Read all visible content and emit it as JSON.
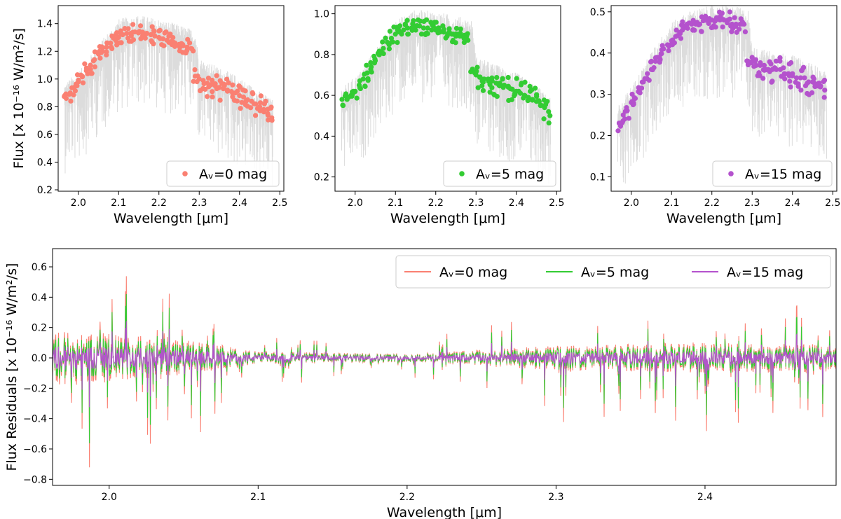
{
  "chart_data": [
    {
      "type": "scatter",
      "panel": "top-left",
      "xlabel": "Wavelength [μm]",
      "ylabel": "Flux [x 10⁻¹⁶ W/m²/s]",
      "xlim": [
        1.95,
        2.51
      ],
      "ylim": [
        0.19,
        1.53
      ],
      "xticks": [
        "2.0",
        "2.1",
        "2.2",
        "2.3",
        "2.4",
        "2.5"
      ],
      "yticks": [
        "0.2",
        "0.4",
        "0.6",
        "0.8",
        "1.0",
        "1.2",
        "1.4"
      ],
      "legend_position": "lower-right",
      "background_spectrum": {
        "color": "#dcdcdc",
        "x": [
          1.97,
          2.01,
          2.05,
          2.1,
          2.15,
          2.2,
          2.25,
          2.29,
          2.3,
          2.35,
          2.4,
          2.45,
          2.48
        ],
        "y": [
          0.85,
          0.95,
          1.12,
          1.3,
          1.33,
          1.3,
          1.26,
          1.22,
          1.02,
          0.95,
          0.88,
          0.78,
          0.72
        ]
      },
      "series": [
        {
          "name": "Aᵥ=0 mag",
          "color": "#fa8072",
          "x": [
            1.97,
            1.98,
            1.99,
            2.0,
            2.01,
            2.02,
            2.03,
            2.04,
            2.05,
            2.06,
            2.07,
            2.08,
            2.09,
            2.1,
            2.11,
            2.12,
            2.13,
            2.14,
            2.15,
            2.16,
            2.17,
            2.18,
            2.19,
            2.2,
            2.21,
            2.22,
            2.23,
            2.24,
            2.25,
            2.26,
            2.27,
            2.28,
            2.29,
            2.3,
            2.31,
            2.32,
            2.33,
            2.34,
            2.35,
            2.36,
            2.37,
            2.38,
            2.39,
            2.4,
            2.41,
            2.42,
            2.43,
            2.44,
            2.45,
            2.46,
            2.47,
            2.48
          ],
          "y": [
            0.86,
            0.9,
            0.94,
            0.98,
            1.02,
            1.06,
            1.1,
            1.14,
            1.18,
            1.2,
            1.23,
            1.26,
            1.29,
            1.3,
            1.32,
            1.33,
            1.33,
            1.34,
            1.34,
            1.33,
            1.33,
            1.32,
            1.31,
            1.3,
            1.29,
            1.28,
            1.27,
            1.26,
            1.25,
            1.24,
            1.23,
            1.22,
            1.02,
            1.0,
            0.99,
            0.97,
            0.96,
            0.95,
            0.94,
            0.93,
            0.92,
            0.91,
            0.9,
            0.88,
            0.87,
            0.85,
            0.84,
            0.82,
            0.8,
            0.78,
            0.75,
            0.72
          ]
        }
      ]
    },
    {
      "type": "scatter",
      "panel": "top-middle",
      "xlabel": "Wavelength [μm]",
      "ylabel": "",
      "xlim": [
        1.95,
        2.51
      ],
      "ylim": [
        0.13,
        1.04
      ],
      "xticks": [
        "2.0",
        "2.1",
        "2.2",
        "2.3",
        "2.4",
        "2.5"
      ],
      "yticks": [
        "0.2",
        "0.4",
        "0.6",
        "0.8",
        "1.0"
      ],
      "legend_position": "lower-right",
      "background_spectrum": {
        "color": "#dcdcdc",
        "x": [
          1.97,
          2.01,
          2.05,
          2.1,
          2.15,
          2.2,
          2.25,
          2.29,
          2.3,
          2.35,
          2.4,
          2.45,
          2.48
        ],
        "y": [
          0.55,
          0.62,
          0.74,
          0.88,
          0.93,
          0.92,
          0.9,
          0.88,
          0.7,
          0.66,
          0.62,
          0.56,
          0.5
        ]
      },
      "series": [
        {
          "name": "Aᵥ=5 mag",
          "color": "#33cc33",
          "x": [
            1.97,
            1.98,
            1.99,
            2.0,
            2.01,
            2.02,
            2.03,
            2.04,
            2.05,
            2.06,
            2.07,
            2.08,
            2.09,
            2.1,
            2.11,
            2.12,
            2.13,
            2.14,
            2.15,
            2.16,
            2.17,
            2.18,
            2.19,
            2.2,
            2.21,
            2.22,
            2.23,
            2.24,
            2.25,
            2.26,
            2.27,
            2.28,
            2.29,
            2.3,
            2.31,
            2.32,
            2.33,
            2.34,
            2.35,
            2.36,
            2.37,
            2.38,
            2.39,
            2.4,
            2.41,
            2.42,
            2.43,
            2.44,
            2.45,
            2.46,
            2.47,
            2.48
          ],
          "y": [
            0.55,
            0.58,
            0.6,
            0.62,
            0.65,
            0.68,
            0.71,
            0.74,
            0.77,
            0.8,
            0.83,
            0.86,
            0.88,
            0.9,
            0.91,
            0.92,
            0.93,
            0.93,
            0.94,
            0.94,
            0.93,
            0.93,
            0.92,
            0.92,
            0.91,
            0.91,
            0.9,
            0.9,
            0.89,
            0.89,
            0.88,
            0.87,
            0.72,
            0.7,
            0.69,
            0.68,
            0.68,
            0.67,
            0.66,
            0.65,
            0.65,
            0.64,
            0.63,
            0.62,
            0.61,
            0.6,
            0.59,
            0.58,
            0.57,
            0.55,
            0.54,
            0.52
          ]
        }
      ]
    },
    {
      "type": "scatter",
      "panel": "top-right",
      "xlabel": "Wavelength [μm]",
      "ylabel": "",
      "xlim": [
        1.95,
        2.51
      ],
      "ylim": [
        0.065,
        0.515
      ],
      "xticks": [
        "2.0",
        "2.1",
        "2.2",
        "2.3",
        "2.4",
        "2.5"
      ],
      "yticks": [
        "0.1",
        "0.2",
        "0.3",
        "0.4",
        "0.5"
      ],
      "legend_position": "lower-right",
      "background_spectrum": {
        "color": "#dcdcdc",
        "x": [
          1.97,
          2.01,
          2.05,
          2.1,
          2.15,
          2.2,
          2.25,
          2.29,
          2.3,
          2.35,
          2.4,
          2.45,
          2.48
        ],
        "y": [
          0.23,
          0.29,
          0.36,
          0.43,
          0.46,
          0.47,
          0.47,
          0.46,
          0.37,
          0.36,
          0.35,
          0.33,
          0.31
        ]
      },
      "series": [
        {
          "name": "Aᵥ=15 mag",
          "color": "#b452cd",
          "x": [
            1.97,
            1.98,
            1.99,
            2.0,
            2.01,
            2.02,
            2.03,
            2.04,
            2.05,
            2.06,
            2.07,
            2.08,
            2.09,
            2.1,
            2.11,
            2.12,
            2.13,
            2.14,
            2.15,
            2.16,
            2.17,
            2.18,
            2.19,
            2.2,
            2.21,
            2.22,
            2.23,
            2.24,
            2.25,
            2.26,
            2.27,
            2.28,
            2.29,
            2.3,
            2.31,
            2.32,
            2.33,
            2.34,
            2.35,
            2.36,
            2.37,
            2.38,
            2.39,
            2.4,
            2.41,
            2.42,
            2.43,
            2.44,
            2.45,
            2.46,
            2.47,
            2.48
          ],
          "y": [
            0.23,
            0.25,
            0.26,
            0.28,
            0.29,
            0.31,
            0.33,
            0.35,
            0.36,
            0.38,
            0.39,
            0.41,
            0.42,
            0.43,
            0.44,
            0.45,
            0.46,
            0.46,
            0.47,
            0.47,
            0.47,
            0.48,
            0.48,
            0.48,
            0.48,
            0.48,
            0.48,
            0.48,
            0.47,
            0.47,
            0.47,
            0.47,
            0.38,
            0.38,
            0.37,
            0.37,
            0.37,
            0.36,
            0.36,
            0.36,
            0.36,
            0.35,
            0.35,
            0.35,
            0.34,
            0.34,
            0.34,
            0.33,
            0.33,
            0.32,
            0.32,
            0.31
          ]
        }
      ]
    },
    {
      "type": "line",
      "panel": "bottom",
      "xlabel": "Wavelength [μm]",
      "ylabel": "Flux Residuals [x 10⁻¹⁶ W/m²/s]",
      "xlim": [
        1.962,
        2.488
      ],
      "ylim": [
        -0.84,
        0.72
      ],
      "xticks": [
        "2.0",
        "2.1",
        "2.2",
        "2.3",
        "2.4"
      ],
      "yticks": [
        "−0.8",
        "−0.6",
        "−0.4",
        "−0.2",
        "0.0",
        "0.2",
        "0.4",
        "0.6"
      ],
      "legend_position": "top-right",
      "residual_envelope": {
        "x": [
          1.96,
          2.05,
          2.1,
          2.2,
          2.3,
          2.4,
          2.49
        ],
        "amplitude": [
          0.35,
          0.22,
          0.08,
          0.05,
          0.15,
          0.18,
          0.17
        ]
      },
      "series": [
        {
          "name": "Aᵥ=0 mag",
          "color": "#fa8072",
          "scale": 1.0
        },
        {
          "name": "Aᵥ=5 mag",
          "color": "#33cc33",
          "scale": 0.78
        },
        {
          "name": "Aᵥ=15 mag",
          "color": "#b452cd",
          "scale": 0.45
        }
      ]
    }
  ]
}
